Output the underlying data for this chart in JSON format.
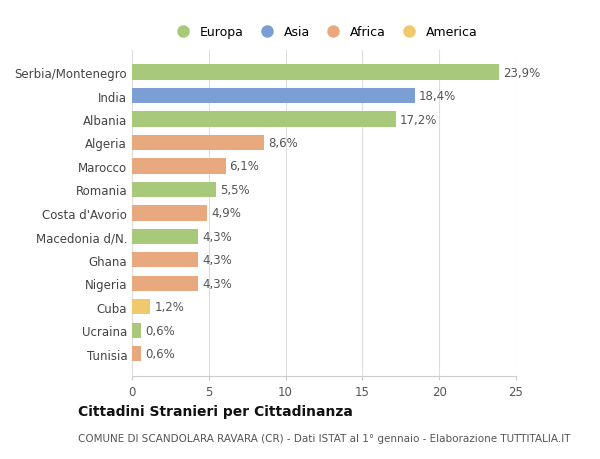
{
  "categories": [
    "Tunisia",
    "Ucraina",
    "Cuba",
    "Nigeria",
    "Ghana",
    "Macedonia d/N.",
    "Costa d'Avorio",
    "Romania",
    "Marocco",
    "Algeria",
    "Albania",
    "India",
    "Serbia/Montenegro"
  ],
  "values": [
    0.6,
    0.6,
    1.2,
    4.3,
    4.3,
    4.3,
    4.9,
    5.5,
    6.1,
    8.6,
    17.2,
    18.4,
    23.9
  ],
  "labels": [
    "0,6%",
    "0,6%",
    "1,2%",
    "4,3%",
    "4,3%",
    "4,3%",
    "4,9%",
    "5,5%",
    "6,1%",
    "8,6%",
    "17,2%",
    "18,4%",
    "23,9%"
  ],
  "colors": [
    "#e8a97e",
    "#a8c87a",
    "#f0c96e",
    "#e8a97e",
    "#e8a97e",
    "#a8c87a",
    "#e8a97e",
    "#a8c87a",
    "#e8a97e",
    "#e8a97e",
    "#a8c87a",
    "#7b9fd4",
    "#a8c87a"
  ],
  "continent": [
    "Africa",
    "Europa",
    "America",
    "Africa",
    "Africa",
    "Europa",
    "Africa",
    "Europa",
    "Africa",
    "Africa",
    "Europa",
    "Asia",
    "Europa"
  ],
  "legend_labels": [
    "Europa",
    "Asia",
    "Africa",
    "America"
  ],
  "legend_colors": [
    "#a8c87a",
    "#7b9fd4",
    "#e8a97e",
    "#f0c96e"
  ],
  "title": "Cittadini Stranieri per Cittadinanza",
  "subtitle": "COMUNE DI SCANDOLARA RAVARA (CR) - Dati ISTAT al 1° gennaio - Elaborazione TUTTITALIA.IT",
  "xlim": [
    0,
    25
  ],
  "xticks": [
    0,
    5,
    10,
    15,
    20,
    25
  ],
  "background_color": "#ffffff",
  "bar_height": 0.65,
  "label_fontsize": 8.5,
  "tick_fontsize": 8.5,
  "title_fontsize": 10,
  "subtitle_fontsize": 7.5
}
